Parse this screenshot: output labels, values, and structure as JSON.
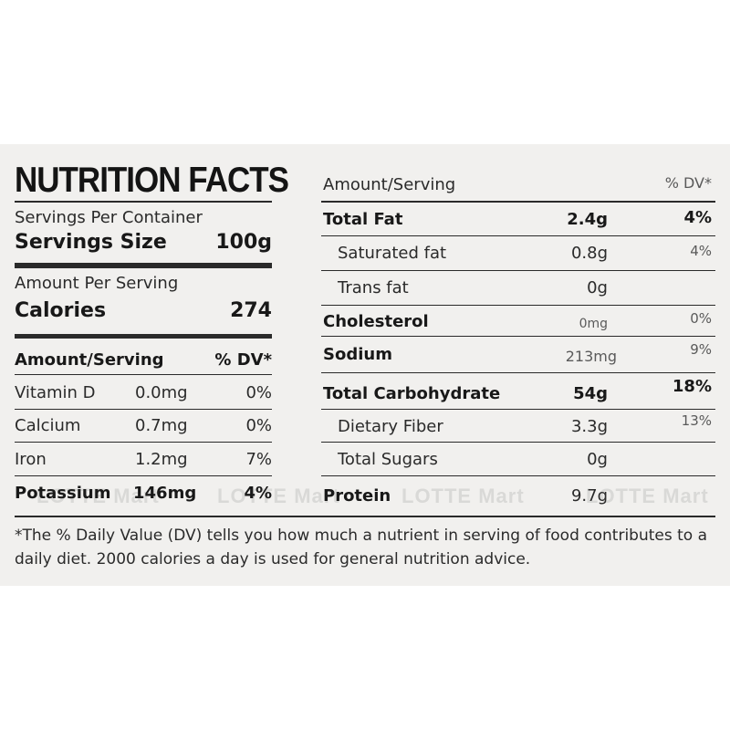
{
  "left": {
    "title": "NUTRITION FACTS",
    "servings_per_container": "Servings Per Container",
    "serving_size_label": "Servings Size",
    "serving_size_value": "100g",
    "amount_per_serving": "Amount Per Serving",
    "calories_label": "Calories",
    "calories_value": "274",
    "table_header_amount": "Amount/Serving",
    "table_header_dv": "% DV*",
    "rows": [
      {
        "name": "Vitamin D",
        "amount": "0.0mg",
        "dv": "0%"
      },
      {
        "name": "Calcium",
        "amount": "0.7mg",
        "dv": "0%"
      },
      {
        "name": "Iron",
        "amount": "1.2mg",
        "dv": "7%"
      },
      {
        "name": "Potassium",
        "amount": "146mg",
        "dv": "4%"
      }
    ]
  },
  "right": {
    "header_amount": "Amount/Serving",
    "header_dv": "% DV*",
    "rows": [
      {
        "name": "Total Fat",
        "amount": "2.4g",
        "dv": "4%"
      },
      {
        "name": "Saturated fat",
        "amount": "0.8g",
        "dv": "4%"
      },
      {
        "name": "Trans fat",
        "amount": "0g",
        "dv": ""
      },
      {
        "name": "Cholesterol",
        "amount": "0mg",
        "dv": "0%"
      },
      {
        "name": "Sodium",
        "amount": "213mg",
        "dv": "9%"
      },
      {
        "name": "Total Carbohydrate",
        "amount": "54g",
        "dv": "18%"
      },
      {
        "name": "Dietary Fiber",
        "amount": "3.3g",
        "dv": "13%"
      },
      {
        "name": "Total Sugars",
        "amount": "0g",
        "dv": ""
      },
      {
        "name": "Protein",
        "amount": "9.7g",
        "dv": ""
      }
    ]
  },
  "watermark": [
    "LOTTE Mart",
    "LOTTE Mart",
    "LOTTE Mart",
    "LOTTE Mart"
  ],
  "footnote": "*The % Daily Value (DV) tells you how much a nutrient in serving of food contributes to a daily diet. 2000 calories a day is used for general nutrition advice."
}
